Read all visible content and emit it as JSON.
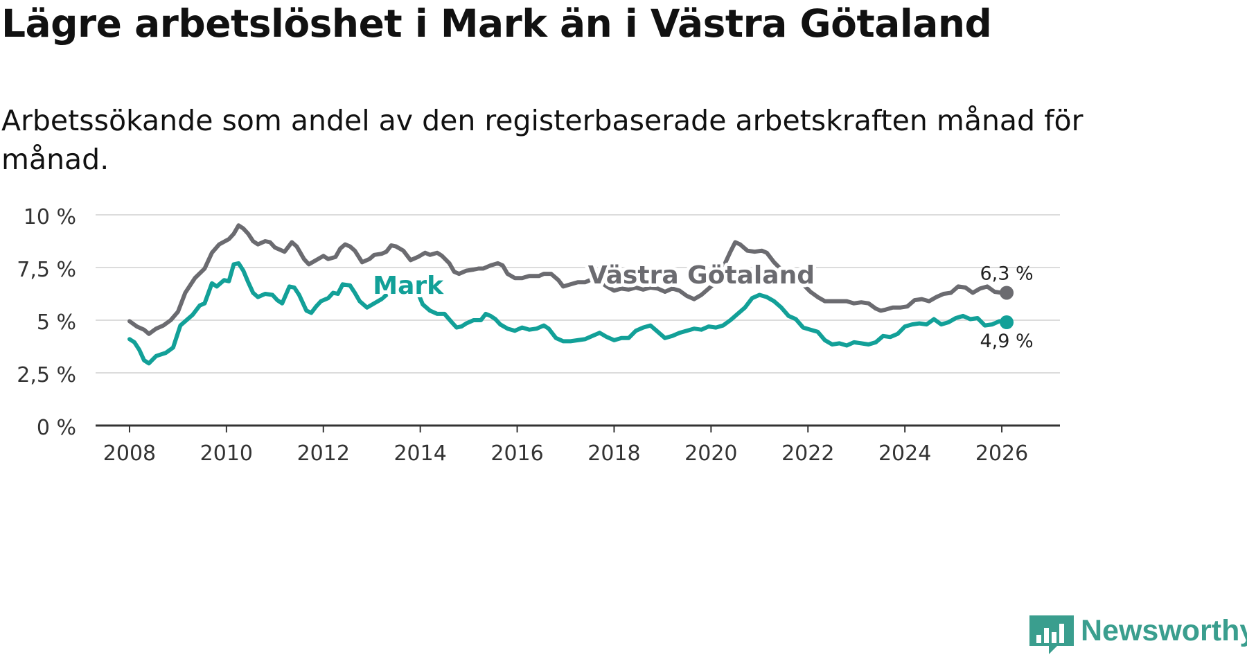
{
  "title": "Lägre arbetslöshet i Mark än i Västra Götaland",
  "subtitle": "Arbetssökande som andel av den registerbaserade arbetskraften månad för månad.",
  "branding": {
    "name": "Newsworthy",
    "color": "#3a9e8e",
    "icon": "newsworthy-logo-icon"
  },
  "chart_data": {
    "type": "line",
    "title": "Lägre arbetslöshet i Mark än i Västra Götaland",
    "subtitle": "Arbetssökande som andel av den registerbaserade arbetskraften månad för månad.",
    "xlabel": "",
    "ylabel": "",
    "xlim": [
      2007.3,
      2027.2
    ],
    "ylim": [
      0,
      10
    ],
    "grid": true,
    "y_ticks": [
      {
        "value": 0,
        "label": "0 %"
      },
      {
        "value": 2.5,
        "label": "2,5 %"
      },
      {
        "value": 5,
        "label": "5 %"
      },
      {
        "value": 7.5,
        "label": "7,5 %"
      },
      {
        "value": 10,
        "label": "10 %"
      }
    ],
    "x_ticks": [
      {
        "value": 2008,
        "label": "2008"
      },
      {
        "value": 2010,
        "label": "2010"
      },
      {
        "value": 2012,
        "label": "2012"
      },
      {
        "value": 2014,
        "label": "2014"
      },
      {
        "value": 2016,
        "label": "2016"
      },
      {
        "value": 2018,
        "label": "2018"
      },
      {
        "value": 2020,
        "label": "2020"
      },
      {
        "value": 2022,
        "label": "2022"
      },
      {
        "value": 2024,
        "label": "2024"
      },
      {
        "value": 2026,
        "label": "2026"
      }
    ],
    "series": [
      {
        "name": "Västra Götaland",
        "color": "#6b6b70",
        "label": {
          "text": "Västra Götaland",
          "x": 2019.8,
          "y": 6.75
        },
        "end_label": "6,3 %",
        "end_label_position": "above",
        "points": [
          [
            2008.0,
            4.95
          ],
          [
            2008.15,
            4.7
          ],
          [
            2008.3,
            4.55
          ],
          [
            2008.4,
            4.35
          ],
          [
            2008.55,
            4.6
          ],
          [
            2008.7,
            4.75
          ],
          [
            2008.85,
            5.0
          ],
          [
            2009.0,
            5.4
          ],
          [
            2009.15,
            6.3
          ],
          [
            2009.35,
            7.0
          ],
          [
            2009.55,
            7.45
          ],
          [
            2009.7,
            8.2
          ],
          [
            2009.85,
            8.6
          ],
          [
            2010.05,
            8.85
          ],
          [
            2010.15,
            9.1
          ],
          [
            2010.25,
            9.5
          ],
          [
            2010.35,
            9.35
          ],
          [
            2010.45,
            9.1
          ],
          [
            2010.55,
            8.75
          ],
          [
            2010.65,
            8.6
          ],
          [
            2010.8,
            8.75
          ],
          [
            2010.9,
            8.7
          ],
          [
            2011.0,
            8.45
          ],
          [
            2011.2,
            8.25
          ],
          [
            2011.35,
            8.7
          ],
          [
            2011.45,
            8.5
          ],
          [
            2011.6,
            7.9
          ],
          [
            2011.7,
            7.65
          ],
          [
            2011.85,
            7.85
          ],
          [
            2012.0,
            8.05
          ],
          [
            2012.1,
            7.9
          ],
          [
            2012.25,
            8.0
          ],
          [
            2012.35,
            8.4
          ],
          [
            2012.45,
            8.6
          ],
          [
            2012.55,
            8.5
          ],
          [
            2012.65,
            8.3
          ],
          [
            2012.8,
            7.75
          ],
          [
            2012.95,
            7.9
          ],
          [
            2013.05,
            8.1
          ],
          [
            2013.2,
            8.15
          ],
          [
            2013.3,
            8.25
          ],
          [
            2013.4,
            8.55
          ],
          [
            2013.5,
            8.5
          ],
          [
            2013.65,
            8.3
          ],
          [
            2013.8,
            7.85
          ],
          [
            2013.95,
            8.0
          ],
          [
            2014.1,
            8.2
          ],
          [
            2014.2,
            8.1
          ],
          [
            2014.35,
            8.2
          ],
          [
            2014.45,
            8.05
          ],
          [
            2014.6,
            7.7
          ],
          [
            2014.7,
            7.3
          ],
          [
            2014.8,
            7.2
          ],
          [
            2014.95,
            7.35
          ],
          [
            2015.1,
            7.4
          ],
          [
            2015.2,
            7.45
          ],
          [
            2015.3,
            7.45
          ],
          [
            2015.45,
            7.6
          ],
          [
            2015.6,
            7.7
          ],
          [
            2015.7,
            7.6
          ],
          [
            2015.8,
            7.2
          ],
          [
            2015.95,
            7.0
          ],
          [
            2016.1,
            7.0
          ],
          [
            2016.25,
            7.1
          ],
          [
            2016.45,
            7.1
          ],
          [
            2016.55,
            7.2
          ],
          [
            2016.7,
            7.2
          ],
          [
            2016.85,
            6.9
          ],
          [
            2016.95,
            6.6
          ],
          [
            2017.1,
            6.7
          ],
          [
            2017.25,
            6.8
          ],
          [
            2017.4,
            6.8
          ],
          [
            2017.55,
            6.95
          ],
          [
            2017.7,
            6.85
          ],
          [
            2017.85,
            6.6
          ],
          [
            2018.0,
            6.4
          ],
          [
            2018.15,
            6.5
          ],
          [
            2018.3,
            6.45
          ],
          [
            2018.45,
            6.55
          ],
          [
            2018.6,
            6.45
          ],
          [
            2018.75,
            6.55
          ],
          [
            2018.9,
            6.5
          ],
          [
            2019.05,
            6.35
          ],
          [
            2019.2,
            6.5
          ],
          [
            2019.35,
            6.4
          ],
          [
            2019.5,
            6.15
          ],
          [
            2019.65,
            6.0
          ],
          [
            2019.8,
            6.2
          ],
          [
            2019.95,
            6.5
          ],
          [
            2020.1,
            6.8
          ],
          [
            2020.25,
            7.5
          ],
          [
            2020.4,
            8.25
          ],
          [
            2020.5,
            8.7
          ],
          [
            2020.6,
            8.6
          ],
          [
            2020.75,
            8.3
          ],
          [
            2020.9,
            8.25
          ],
          [
            2021.05,
            8.3
          ],
          [
            2021.15,
            8.2
          ],
          [
            2021.3,
            7.75
          ],
          [
            2021.45,
            7.4
          ],
          [
            2021.6,
            7.4
          ],
          [
            2021.75,
            7.05
          ],
          [
            2021.9,
            6.7
          ],
          [
            2022.05,
            6.35
          ],
          [
            2022.2,
            6.1
          ],
          [
            2022.35,
            5.9
          ],
          [
            2022.5,
            5.9
          ],
          [
            2022.65,
            5.9
          ],
          [
            2022.8,
            5.9
          ],
          [
            2022.95,
            5.8
          ],
          [
            2023.1,
            5.85
          ],
          [
            2023.25,
            5.8
          ],
          [
            2023.4,
            5.55
          ],
          [
            2023.5,
            5.45
          ],
          [
            2023.6,
            5.5
          ],
          [
            2023.75,
            5.6
          ],
          [
            2023.9,
            5.6
          ],
          [
            2024.05,
            5.65
          ],
          [
            2024.2,
            5.95
          ],
          [
            2024.35,
            6.0
          ],
          [
            2024.5,
            5.9
          ],
          [
            2024.65,
            6.1
          ],
          [
            2024.8,
            6.25
          ],
          [
            2024.95,
            6.3
          ],
          [
            2025.1,
            6.6
          ],
          [
            2025.25,
            6.55
          ],
          [
            2025.4,
            6.3
          ],
          [
            2025.55,
            6.5
          ],
          [
            2025.7,
            6.6
          ],
          [
            2025.85,
            6.35
          ],
          [
            2026.0,
            6.3
          ],
          [
            2026.1,
            6.3
          ]
        ]
      },
      {
        "name": "Mark",
        "color": "#12a098",
        "label": {
          "text": "Mark",
          "x": 2013.75,
          "y": 6.25
        },
        "end_label": "4,9 %",
        "end_label_position": "below",
        "points": [
          [
            2008.0,
            4.1
          ],
          [
            2008.1,
            3.95
          ],
          [
            2008.2,
            3.6
          ],
          [
            2008.3,
            3.1
          ],
          [
            2008.4,
            2.95
          ],
          [
            2008.55,
            3.3
          ],
          [
            2008.75,
            3.45
          ],
          [
            2008.9,
            3.7
          ],
          [
            2009.05,
            4.75
          ],
          [
            2009.15,
            4.95
          ],
          [
            2009.3,
            5.25
          ],
          [
            2009.45,
            5.7
          ],
          [
            2009.55,
            5.8
          ],
          [
            2009.7,
            6.75
          ],
          [
            2009.8,
            6.6
          ],
          [
            2009.95,
            6.9
          ],
          [
            2010.05,
            6.85
          ],
          [
            2010.15,
            7.65
          ],
          [
            2010.25,
            7.7
          ],
          [
            2010.35,
            7.35
          ],
          [
            2010.45,
            6.8
          ],
          [
            2010.55,
            6.3
          ],
          [
            2010.65,
            6.1
          ],
          [
            2010.8,
            6.25
          ],
          [
            2010.95,
            6.2
          ],
          [
            2011.05,
            5.95
          ],
          [
            2011.15,
            5.8
          ],
          [
            2011.3,
            6.6
          ],
          [
            2011.4,
            6.55
          ],
          [
            2011.5,
            6.2
          ],
          [
            2011.65,
            5.45
          ],
          [
            2011.75,
            5.35
          ],
          [
            2011.85,
            5.65
          ],
          [
            2011.95,
            5.9
          ],
          [
            2012.1,
            6.05
          ],
          [
            2012.2,
            6.3
          ],
          [
            2012.3,
            6.25
          ],
          [
            2012.4,
            6.7
          ],
          [
            2012.55,
            6.65
          ],
          [
            2012.65,
            6.3
          ],
          [
            2012.75,
            5.9
          ],
          [
            2012.9,
            5.6
          ],
          [
            2013.05,
            5.8
          ],
          [
            2013.2,
            6.0
          ],
          [
            2013.35,
            6.3
          ],
          [
            2013.5,
            6.55
          ],
          [
            2013.65,
            6.9
          ],
          [
            2013.8,
            6.85
          ],
          [
            2013.95,
            6.3
          ],
          [
            2014.05,
            5.75
          ],
          [
            2014.2,
            5.45
          ],
          [
            2014.35,
            5.3
          ],
          [
            2014.5,
            5.3
          ],
          [
            2014.65,
            4.9
          ],
          [
            2014.75,
            4.65
          ],
          [
            2014.85,
            4.7
          ],
          [
            2014.95,
            4.85
          ],
          [
            2015.1,
            5.0
          ],
          [
            2015.25,
            5.0
          ],
          [
            2015.35,
            5.3
          ],
          [
            2015.45,
            5.2
          ],
          [
            2015.55,
            5.05
          ],
          [
            2015.65,
            4.8
          ],
          [
            2015.8,
            4.6
          ],
          [
            2015.95,
            4.5
          ],
          [
            2016.1,
            4.65
          ],
          [
            2016.25,
            4.55
          ],
          [
            2016.4,
            4.6
          ],
          [
            2016.55,
            4.75
          ],
          [
            2016.65,
            4.6
          ],
          [
            2016.8,
            4.15
          ],
          [
            2016.95,
            4.0
          ],
          [
            2017.1,
            4.0
          ],
          [
            2017.25,
            4.05
          ],
          [
            2017.4,
            4.1
          ],
          [
            2017.55,
            4.25
          ],
          [
            2017.7,
            4.4
          ],
          [
            2017.85,
            4.2
          ],
          [
            2018.0,
            4.05
          ],
          [
            2018.15,
            4.15
          ],
          [
            2018.3,
            4.15
          ],
          [
            2018.45,
            4.5
          ],
          [
            2018.6,
            4.65
          ],
          [
            2018.75,
            4.75
          ],
          [
            2018.9,
            4.45
          ],
          [
            2019.05,
            4.15
          ],
          [
            2019.2,
            4.25
          ],
          [
            2019.35,
            4.4
          ],
          [
            2019.5,
            4.5
          ],
          [
            2019.65,
            4.6
          ],
          [
            2019.8,
            4.55
          ],
          [
            2019.95,
            4.7
          ],
          [
            2020.1,
            4.65
          ],
          [
            2020.25,
            4.75
          ],
          [
            2020.4,
            5.0
          ],
          [
            2020.55,
            5.3
          ],
          [
            2020.7,
            5.6
          ],
          [
            2020.85,
            6.05
          ],
          [
            2021.0,
            6.2
          ],
          [
            2021.15,
            6.1
          ],
          [
            2021.3,
            5.9
          ],
          [
            2021.45,
            5.6
          ],
          [
            2021.6,
            5.2
          ],
          [
            2021.75,
            5.05
          ],
          [
            2021.9,
            4.65
          ],
          [
            2022.05,
            4.55
          ],
          [
            2022.2,
            4.45
          ],
          [
            2022.35,
            4.05
          ],
          [
            2022.5,
            3.85
          ],
          [
            2022.65,
            3.9
          ],
          [
            2022.8,
            3.8
          ],
          [
            2022.95,
            3.95
          ],
          [
            2023.1,
            3.9
          ],
          [
            2023.25,
            3.85
          ],
          [
            2023.4,
            3.95
          ],
          [
            2023.55,
            4.25
          ],
          [
            2023.7,
            4.2
          ],
          [
            2023.85,
            4.35
          ],
          [
            2024.0,
            4.7
          ],
          [
            2024.15,
            4.8
          ],
          [
            2024.3,
            4.85
          ],
          [
            2024.45,
            4.8
          ],
          [
            2024.6,
            5.05
          ],
          [
            2024.75,
            4.8
          ],
          [
            2024.9,
            4.9
          ],
          [
            2025.05,
            5.1
          ],
          [
            2025.2,
            5.2
          ],
          [
            2025.35,
            5.05
          ],
          [
            2025.5,
            5.1
          ],
          [
            2025.65,
            4.75
          ],
          [
            2025.8,
            4.8
          ],
          [
            2025.95,
            4.95
          ],
          [
            2026.1,
            4.9
          ]
        ]
      }
    ]
  }
}
